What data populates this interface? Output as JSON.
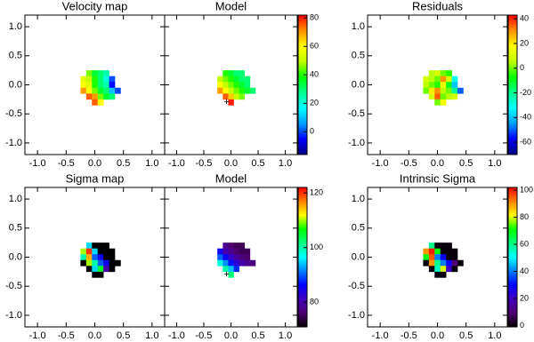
{
  "chart_data": [
    {
      "type": "heatmap",
      "title": "Velocity map",
      "x": [
        -0.2,
        -0.1,
        0,
        0.1,
        0.2,
        0.3,
        0.4
      ],
      "y": [
        0.2,
        0.1,
        0,
        -0.1,
        -0.2,
        -0.3
      ],
      "values": [
        [
          null,
          45,
          35,
          30,
          25,
          null,
          null
        ],
        [
          55,
          50,
          40,
          30,
          20,
          0,
          null
        ],
        [
          60,
          55,
          40,
          30,
          25,
          -5,
          null
        ],
        [
          70,
          60,
          45,
          35,
          30,
          10,
          0
        ],
        [
          null,
          75,
          70,
          45,
          35,
          30,
          null
        ],
        [
          null,
          null,
          75,
          60,
          null,
          null,
          null
        ]
      ],
      "clim": [
        -16,
        82
      ],
      "colormap": [
        "#000080",
        "#0000ff",
        "#00a0ff",
        "#00ffff",
        "#00ff90",
        "#00ff00",
        "#c0ff00",
        "#ffff00",
        "#ff9000",
        "#ff0000"
      ],
      "xlim": [
        -1.22,
        1.22
      ],
      "ylim": [
        -1.2,
        1.2
      ],
      "xticks": [
        {
          "value": -1,
          "label": "-1.0"
        },
        {
          "value": -0.5,
          "label": "-0.5"
        },
        {
          "value": 0,
          "label": "0.0"
        },
        {
          "value": 0.5,
          "label": "0.5"
        },
        {
          "value": 1,
          "label": "1.0"
        }
      ],
      "yticks": [
        {
          "value": -1,
          "label": "-1.0"
        },
        {
          "value": -0.5,
          "label": "-0.5"
        },
        {
          "value": 0,
          "label": "0.0"
        },
        {
          "value": 0.5,
          "label": "0.5"
        },
        {
          "value": 1,
          "label": "1.0"
        }
      ]
    },
    {
      "type": "heatmap",
      "title": "Model",
      "x": [
        -0.2,
        -0.1,
        0,
        0.1,
        0.2,
        0.3,
        0.4
      ],
      "y": [
        0.2,
        0.1,
        0,
        -0.1,
        -0.2,
        -0.3
      ],
      "values": [
        [
          null,
          40,
          35,
          30,
          30,
          null,
          null
        ],
        [
          50,
          45,
          40,
          35,
          30,
          30,
          null
        ],
        [
          60,
          50,
          45,
          40,
          35,
          30,
          null
        ],
        [
          70,
          60,
          50,
          45,
          40,
          35,
          30
        ],
        [
          null,
          75,
          65,
          50,
          45,
          null,
          null
        ],
        [
          null,
          null,
          80,
          null,
          null,
          null,
          null
        ]
      ],
      "center": {
        "x": -0.08,
        "y": -0.3
      },
      "clim": [
        -16,
        82
      ],
      "colormap": [
        "#000080",
        "#0000ff",
        "#00a0ff",
        "#00ffff",
        "#00ff90",
        "#00ff00",
        "#c0ff00",
        "#ffff00",
        "#ff9000",
        "#ff0000"
      ],
      "colorbar_ticks": [
        80,
        60,
        40,
        20,
        0
      ],
      "xlim": [
        -1.22,
        1.22
      ],
      "ylim": [
        -1.2,
        1.2
      ],
      "xticks": [
        {
          "value": -1,
          "label": "-1.0"
        },
        {
          "value": -0.5,
          "label": "-0.5"
        },
        {
          "value": 0,
          "label": "0.0"
        },
        {
          "value": 0.5,
          "label": "0.5"
        },
        {
          "value": 1,
          "label": "1.0"
        }
      ],
      "yticks": [
        -1,
        -0.5,
        0,
        0.5,
        1
      ]
    },
    {
      "type": "heatmap",
      "title": "Residuals",
      "x": [
        -0.2,
        -0.1,
        0,
        0.1,
        0.2,
        0.3,
        0.4
      ],
      "y": [
        0.2,
        0.1,
        0,
        -0.1,
        -0.2,
        -0.3
      ],
      "values": [
        [
          null,
          5,
          10,
          0,
          -5,
          null,
          null
        ],
        [
          10,
          5,
          0,
          30,
          10,
          -30,
          null
        ],
        [
          5,
          0,
          -5,
          15,
          -10,
          -40,
          null
        ],
        [
          0,
          20,
          30,
          5,
          0,
          -20,
          -50
        ],
        [
          null,
          10,
          35,
          0,
          5,
          10,
          null
        ],
        [
          null,
          null,
          0,
          15,
          null,
          null,
          null
        ]
      ],
      "clim": [
        -70,
        43
      ],
      "colormap": [
        "#000080",
        "#0000ff",
        "#00a0ff",
        "#00ffff",
        "#00ff90",
        "#00ff00",
        "#c0ff00",
        "#ffff00",
        "#ff9000",
        "#ff0000"
      ],
      "colorbar_ticks": [
        40,
        20,
        0,
        -20,
        -40,
        -60
      ],
      "xlim": [
        -1.22,
        1.22
      ],
      "ylim": [
        -1.2,
        1.2
      ],
      "xticks": [
        {
          "value": -1,
          "label": "-1.0"
        },
        {
          "value": -0.5,
          "label": "-0.5"
        },
        {
          "value": 0,
          "label": "0.0"
        },
        {
          "value": 0.5,
          "label": "0.5"
        },
        {
          "value": 1,
          "label": "1.0"
        }
      ],
      "yticks": [
        {
          "value": -1,
          "label": "-1.0"
        },
        {
          "value": -0.5,
          "label": "-0.5"
        },
        {
          "value": 0,
          "label": "0.0"
        },
        {
          "value": 0.5,
          "label": "0.5"
        },
        {
          "value": 1,
          "label": "1.0"
        }
      ]
    },
    {
      "type": "heatmap",
      "title": "Sigma map",
      "x": [
        -0.2,
        -0.1,
        0,
        0.1,
        0.2,
        0.3,
        0.4
      ],
      "y": [
        0.2,
        0.1,
        0,
        -0.1,
        -0.2,
        -0.3
      ],
      "values": [
        [
          null,
          95,
          60,
          60,
          60,
          null,
          null
        ],
        [
          110,
          120,
          95,
          60,
          60,
          60,
          null
        ],
        [
          100,
          115,
          90,
          85,
          60,
          60,
          null
        ],
        [
          60,
          110,
          100,
          90,
          85,
          70,
          60
        ],
        [
          null,
          60,
          95,
          105,
          80,
          60,
          null
        ],
        [
          null,
          null,
          60,
          60,
          null,
          null,
          null
        ]
      ],
      "clim": [
        71,
        122
      ],
      "colormap": [
        "#000000",
        "#500070",
        "#4000c0",
        "#0000ff",
        "#0080ff",
        "#00ffff",
        "#00ff80",
        "#00ff00",
        "#ffff00",
        "#ff8000",
        "#ff0000"
      ],
      "xlim": [
        -1.22,
        1.22
      ],
      "ylim": [
        -1.2,
        1.2
      ],
      "xticks": [
        {
          "value": -1,
          "label": "-1.0"
        },
        {
          "value": -0.5,
          "label": "-0.5"
        },
        {
          "value": 0,
          "label": "0.0"
        },
        {
          "value": 0.5,
          "label": "0.5"
        },
        {
          "value": 1,
          "label": "1.0"
        }
      ],
      "yticks": [
        {
          "value": -1,
          "label": "-1.0"
        },
        {
          "value": -0.5,
          "label": "-0.5"
        },
        {
          "value": 0,
          "label": "0.0"
        },
        {
          "value": 0.5,
          "label": "0.5"
        },
        {
          "value": 1,
          "label": "1.0"
        }
      ]
    },
    {
      "type": "heatmap",
      "title": "Model",
      "x": [
        -0.2,
        -0.1,
        0,
        0.1,
        0.2,
        0.3,
        0.4
      ],
      "y": [
        0.2,
        0.1,
        0,
        -0.1,
        -0.2,
        -0.3
      ],
      "values": [
        [
          null,
          78,
          76,
          75,
          75,
          null,
          null
        ],
        [
          85,
          80,
          78,
          76,
          75,
          75,
          null
        ],
        [
          90,
          86,
          82,
          79,
          77,
          76,
          null
        ],
        [
          98,
          92,
          87,
          83,
          80,
          78,
          77
        ],
        [
          null,
          100,
          94,
          88,
          null,
          null,
          null
        ],
        [
          null,
          null,
          102,
          null,
          null,
          null,
          null
        ]
      ],
      "center": {
        "x": -0.08,
        "y": -0.3
      },
      "clim": [
        71,
        122
      ],
      "colormap": [
        "#000000",
        "#500070",
        "#4000c0",
        "#0000ff",
        "#0080ff",
        "#00ffff",
        "#00ff80",
        "#00ff00",
        "#ffff00",
        "#ff8000",
        "#ff0000"
      ],
      "colorbar_ticks": [
        120,
        100,
        80
      ],
      "xlim": [
        -1.22,
        1.22
      ],
      "ylim": [
        -1.2,
        1.2
      ],
      "xticks": [
        {
          "value": -1,
          "label": "-1.0"
        },
        {
          "value": -0.5,
          "label": "-0.5"
        },
        {
          "value": 0,
          "label": "0.0"
        },
        {
          "value": 0.5,
          "label": "0.5"
        },
        {
          "value": 1,
          "label": "1.0"
        }
      ],
      "yticks": [
        -1,
        -0.5,
        0,
        0.5,
        1
      ]
    },
    {
      "type": "heatmap",
      "title": "Intrinsic Sigma",
      "x": [
        -0.2,
        -0.1,
        0,
        0.1,
        0.2,
        0.3,
        0.4
      ],
      "y": [
        0.2,
        0.1,
        0,
        -0.1,
        -0.2,
        -0.3
      ],
      "values": [
        [
          null,
          60,
          0,
          0,
          0,
          null,
          null
        ],
        [
          90,
          100,
          70,
          0,
          0,
          0,
          null
        ],
        [
          70,
          95,
          40,
          30,
          0,
          0,
          null
        ],
        [
          0,
          90,
          60,
          40,
          30,
          10,
          0
        ],
        [
          null,
          0,
          55,
          80,
          20,
          0,
          null
        ],
        [
          null,
          null,
          0,
          0,
          null,
          null,
          null
        ]
      ],
      "clim": [
        -1,
        102
      ],
      "colormap": [
        "#000000",
        "#500070",
        "#4000c0",
        "#0000ff",
        "#0080ff",
        "#00ffff",
        "#00ff80",
        "#00ff00",
        "#ffff00",
        "#ff8000",
        "#ff0000"
      ],
      "colorbar_ticks": [
        100,
        80,
        60,
        40,
        20,
        0
      ],
      "xlim": [
        -1.22,
        1.22
      ],
      "ylim": [
        -1.2,
        1.2
      ],
      "xticks": [
        {
          "value": -1,
          "label": "-1.0"
        },
        {
          "value": -0.5,
          "label": "-0.5"
        },
        {
          "value": 0,
          "label": "0.0"
        },
        {
          "value": 0.5,
          "label": "0.5"
        },
        {
          "value": 1,
          "label": "1.0"
        }
      ],
      "yticks": [
        {
          "value": -1,
          "label": "-1.0"
        },
        {
          "value": -0.5,
          "label": "-0.5"
        },
        {
          "value": 0,
          "label": "0.0"
        },
        {
          "value": 0.5,
          "label": "0.5"
        },
        {
          "value": 1,
          "label": "1.0"
        }
      ]
    }
  ]
}
